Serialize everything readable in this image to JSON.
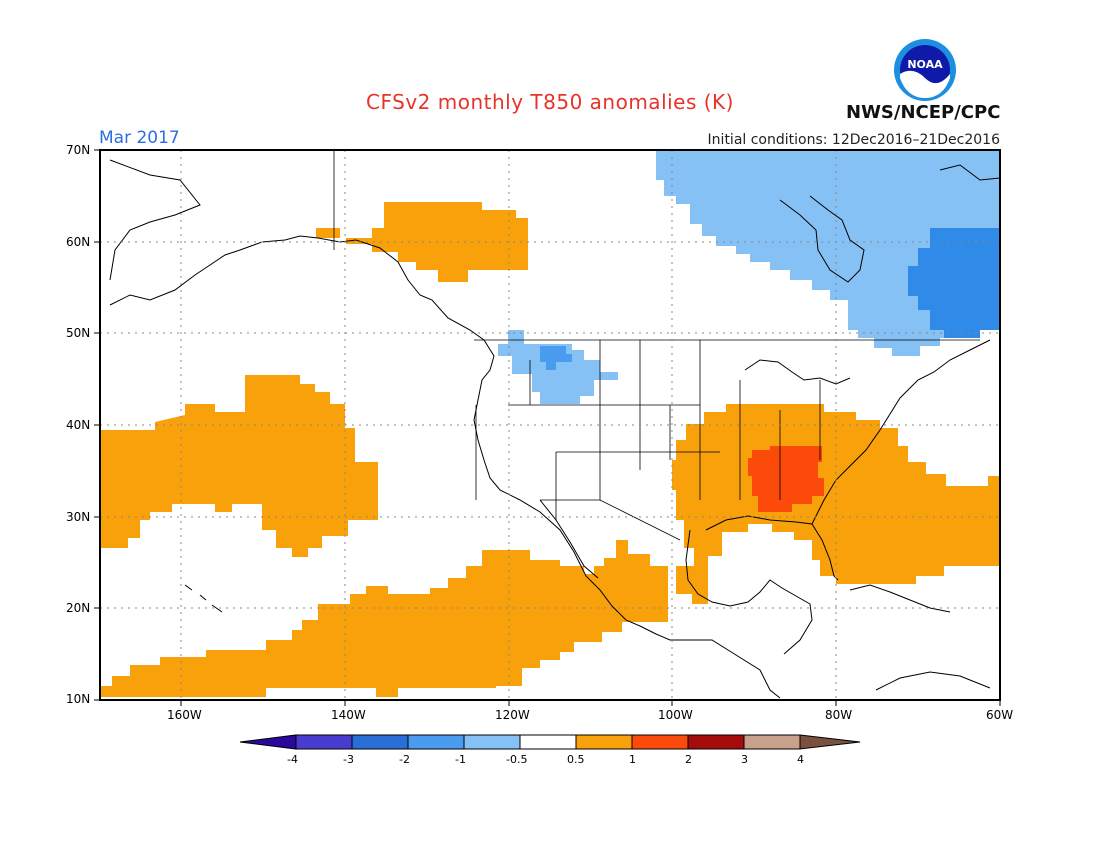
{
  "title": "CFSv2 monthly T850 anomalies (K)",
  "month": "Mar 2017",
  "initial_conditions": "Initial conditions: 12Dec2016–21Dec2016",
  "agency": "NWS/NCEP/CPC",
  "logo_text": "NOAA",
  "lat_labels": [
    "70N",
    "60N",
    "50N",
    "40N",
    "30N",
    "20N",
    "10N"
  ],
  "lon_labels": [
    "160W",
    "140W",
    "120W",
    "100W",
    "80W",
    "60W"
  ],
  "colorbar": {
    "labels": [
      "-4",
      "-3",
      "-2",
      "-1",
      "-0.5",
      "0.5",
      "1",
      "2",
      "3",
      "4"
    ],
    "colors": [
      "#2a0a9e",
      "#4a3bd0",
      "#2a6fd8",
      "#4a9cf0",
      "#86c1f6",
      "#ffffff",
      "#f9a10b",
      "#fb4a0a",
      "#a50d0d",
      "#c9a08c",
      "#7a5040"
    ]
  },
  "regions": [
    {
      "name": "warm-alaska-yukon",
      "category": "0.5-1"
    },
    {
      "name": "cold-idaho-montana",
      "category": "-1--0.5"
    },
    {
      "name": "cold-canada-east",
      "category": "-1--0.5"
    },
    {
      "name": "colder-quebec-labrador",
      "category": "-2--1"
    },
    {
      "name": "warm-southeast-us-gulf-atlantic",
      "category": "0.5-1"
    },
    {
      "name": "warmer-southeast-us-core",
      "category": "1-2"
    },
    {
      "name": "warm-pacific-north",
      "category": "0.5-1"
    },
    {
      "name": "warm-pacific-tropical-band",
      "category": "0.5-1"
    }
  ]
}
